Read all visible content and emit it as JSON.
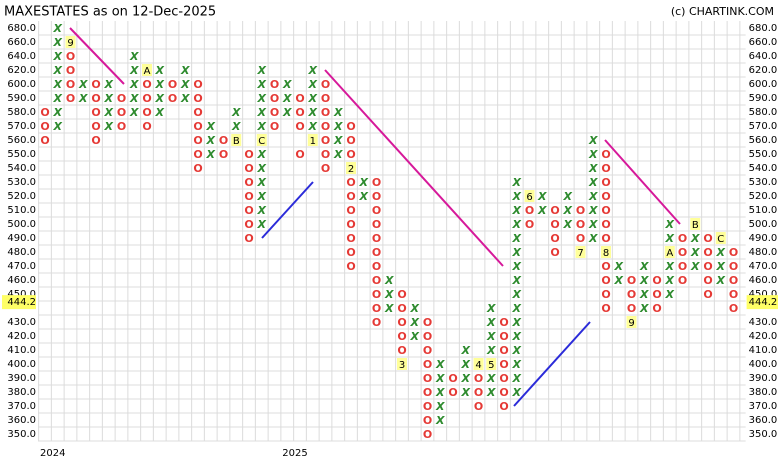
{
  "chart_data": {
    "type": "point-and-figure",
    "title": "MAXESTATES as on 12-Dec-2025",
    "source": "(c) CHARTINK.COM",
    "years": [
      "2024",
      "2025"
    ],
    "yticks": [
      {
        "value": 680,
        "label": "680.0"
      },
      {
        "value": 660,
        "label": "660.0"
      },
      {
        "value": 640,
        "label": "640.0"
      },
      {
        "value": 620,
        "label": "620.0"
      },
      {
        "value": 600,
        "label": "600.0"
      },
      {
        "value": 590,
        "label": "590.0"
      },
      {
        "value": 580,
        "label": "580.0"
      },
      {
        "value": 570,
        "label": "570.0"
      },
      {
        "value": 560,
        "label": "560.0"
      },
      {
        "value": 550,
        "label": "550.0"
      },
      {
        "value": 540,
        "label": "540.0"
      },
      {
        "value": 530,
        "label": "530.0"
      },
      {
        "value": 520,
        "label": "520.0"
      },
      {
        "value": 510,
        "label": "510.0"
      },
      {
        "value": 500,
        "label": "500.0"
      },
      {
        "value": 490,
        "label": "490.0"
      },
      {
        "value": 480,
        "label": "480.0"
      },
      {
        "value": 470,
        "label": "470.0"
      },
      {
        "value": 460,
        "label": "460.0"
      },
      {
        "value": 450,
        "label": "450.0"
      },
      {
        "value": 440,
        "label": null
      },
      {
        "value": 430,
        "label": "430.0"
      },
      {
        "value": 420,
        "label": "420.0"
      },
      {
        "value": 410,
        "label": "410.0"
      },
      {
        "value": 400,
        "label": "400.0"
      },
      {
        "value": 390,
        "label": "390.0"
      },
      {
        "value": 380,
        "label": "380.0"
      },
      {
        "value": 370,
        "label": "370.0"
      },
      {
        "value": 360,
        "label": "360.0"
      },
      {
        "value": 350,
        "label": "350.0"
      }
    ],
    "last_price": {
      "value": 444.2,
      "label": "444.2"
    },
    "x_color": "#2e8b2e",
    "o_color": "#e53935",
    "grid": true,
    "columns": [
      {
        "symbol": "O",
        "boxes": [
          580,
          570,
          560
        ]
      },
      {
        "symbol": "X",
        "boxes": [
          680,
          660,
          640,
          620,
          600,
          590,
          580,
          570
        ]
      },
      {
        "symbol": "O",
        "boxes": [
          640,
          620,
          600,
          590
        ],
        "markers": [
          {
            "box": 660,
            "label": "9"
          }
        ]
      },
      {
        "symbol": "X",
        "boxes": [
          600,
          590
        ]
      },
      {
        "symbol": "O",
        "boxes": [
          600,
          590,
          580,
          570,
          560
        ]
      },
      {
        "symbol": "X",
        "boxes": [
          600,
          590,
          580,
          570
        ]
      },
      {
        "symbol": "O",
        "boxes": [
          590,
          580,
          570
        ]
      },
      {
        "symbol": "X",
        "boxes": [
          640,
          620,
          600,
          590,
          580
        ]
      },
      {
        "symbol": "O",
        "boxes": [
          600,
          590,
          580,
          570
        ],
        "markers": [
          {
            "box": 620,
            "label": "A"
          }
        ]
      },
      {
        "symbol": "X",
        "boxes": [
          620,
          600,
          590,
          580
        ]
      },
      {
        "symbol": "O",
        "boxes": [
          600,
          590
        ]
      },
      {
        "symbol": "X",
        "boxes": [
          620,
          600,
          590
        ]
      },
      {
        "symbol": "O",
        "boxes": [
          600,
          590,
          580,
          570,
          560,
          550,
          540
        ]
      },
      {
        "symbol": "X",
        "boxes": [
          570,
          560,
          550
        ]
      },
      {
        "symbol": "O",
        "boxes": [
          560,
          550
        ]
      },
      {
        "symbol": "X",
        "boxes": [
          580,
          570
        ],
        "markers": [
          {
            "box": 560,
            "label": "B"
          }
        ]
      },
      {
        "symbol": "O",
        "boxes": [
          550,
          540,
          530,
          520,
          510,
          500,
          490
        ]
      },
      {
        "symbol": "X",
        "boxes": [
          620,
          600,
          590,
          580,
          570,
          550,
          540,
          530,
          520,
          510,
          500
        ],
        "markers": [
          {
            "box": 560,
            "label": "C"
          }
        ]
      },
      {
        "symbol": "O",
        "boxes": [
          600,
          590,
          580,
          570
        ]
      },
      {
        "symbol": "X",
        "boxes": [
          600,
          590,
          580
        ]
      },
      {
        "symbol": "O",
        "boxes": [
          590,
          580,
          570,
          550
        ]
      },
      {
        "symbol": "X",
        "boxes": [
          620,
          600,
          590,
          580,
          570
        ],
        "markers": [
          {
            "box": 560,
            "label": "1"
          }
        ]
      },
      {
        "symbol": "O",
        "boxes": [
          600,
          590,
          580,
          570,
          560,
          550,
          540
        ]
      },
      {
        "symbol": "X",
        "boxes": [
          580,
          570,
          560,
          550
        ]
      },
      {
        "symbol": "O",
        "boxes": [
          570,
          560,
          550,
          530,
          520,
          510,
          500,
          490,
          480,
          470
        ],
        "markers": [
          {
            "box": 540,
            "label": "2"
          }
        ]
      },
      {
        "symbol": "X",
        "boxes": [
          530,
          520
        ]
      },
      {
        "symbol": "O",
        "boxes": [
          530,
          520,
          510,
          500,
          490,
          480,
          470,
          460,
          450,
          440,
          430
        ]
      },
      {
        "symbol": "X",
        "boxes": [
          460,
          450,
          440
        ]
      },
      {
        "symbol": "O",
        "boxes": [
          450,
          440,
          430,
          420,
          410
        ],
        "markers": [
          {
            "box": 400,
            "label": "3"
          }
        ]
      },
      {
        "symbol": "X",
        "boxes": [
          440,
          430,
          420
        ]
      },
      {
        "symbol": "O",
        "boxes": [
          430,
          420,
          410,
          400,
          390,
          380,
          370,
          360,
          350
        ]
      },
      {
        "symbol": "X",
        "boxes": [
          400,
          390,
          380,
          370,
          360
        ]
      },
      {
        "symbol": "O",
        "boxes": [
          390,
          380
        ]
      },
      {
        "symbol": "X",
        "boxes": [
          410,
          400,
          390,
          380
        ]
      },
      {
        "symbol": "O",
        "boxes": [
          390,
          380,
          370
        ],
        "markers": [
          {
            "box": 400,
            "label": "4"
          }
        ]
      },
      {
        "symbol": "X",
        "boxes": [
          440,
          430,
          420,
          410,
          390,
          380
        ],
        "markers": [
          {
            "box": 400,
            "label": "5"
          }
        ]
      },
      {
        "symbol": "O",
        "boxes": [
          430,
          420,
          410,
          400,
          390,
          380,
          370
        ]
      },
      {
        "symbol": "X",
        "boxes": [
          530,
          520,
          510,
          500,
          490,
          480,
          470,
          460,
          450,
          440,
          430,
          420,
          410,
          400,
          390,
          380
        ]
      },
      {
        "symbol": "O",
        "boxes": [
          510,
          500
        ],
        "markers": [
          {
            "box": 520,
            "label": "6"
          }
        ]
      },
      {
        "symbol": "X",
        "boxes": [
          520,
          510
        ]
      },
      {
        "symbol": "O",
        "boxes": [
          510,
          500,
          490,
          480
        ]
      },
      {
        "symbol": "X",
        "boxes": [
          520,
          510,
          500
        ]
      },
      {
        "symbol": "O",
        "boxes": [
          510,
          500,
          490
        ],
        "markers": [
          {
            "box": 480,
            "label": "7"
          }
        ]
      },
      {
        "symbol": "X",
        "boxes": [
          560,
          550,
          540,
          530,
          520,
          510,
          500,
          490
        ]
      },
      {
        "symbol": "O",
        "boxes": [
          550,
          540,
          530,
          520,
          510,
          500,
          490,
          470,
          460,
          450,
          440
        ],
        "markers": [
          {
            "box": 480,
            "label": "8"
          }
        ]
      },
      {
        "symbol": "X",
        "boxes": [
          470,
          460
        ]
      },
      {
        "symbol": "O",
        "boxes": [
          460,
          450,
          440
        ],
        "markers": [
          {
            "box": 430,
            "label": "9"
          }
        ]
      },
      {
        "symbol": "X",
        "boxes": [
          470,
          460,
          450,
          440
        ]
      },
      {
        "symbol": "O",
        "boxes": [
          460,
          450,
          440
        ]
      },
      {
        "symbol": "X",
        "boxes": [
          500,
          490,
          470,
          460,
          450
        ],
        "markers": [
          {
            "box": 480,
            "label": "A"
          }
        ]
      },
      {
        "symbol": "O",
        "boxes": [
          490,
          480,
          470,
          460
        ]
      },
      {
        "symbol": "X",
        "boxes": [
          490,
          480,
          470
        ],
        "markers": [
          {
            "box": 500,
            "label": "B"
          }
        ]
      },
      {
        "symbol": "O",
        "boxes": [
          490,
          480,
          470,
          460,
          450
        ]
      },
      {
        "symbol": "X",
        "boxes": [
          480,
          470,
          460
        ],
        "markers": [
          {
            "box": 490,
            "label": "C"
          }
        ]
      },
      {
        "symbol": "O",
        "boxes": [
          480,
          470,
          460,
          450,
          440
        ]
      }
    ]
  }
}
